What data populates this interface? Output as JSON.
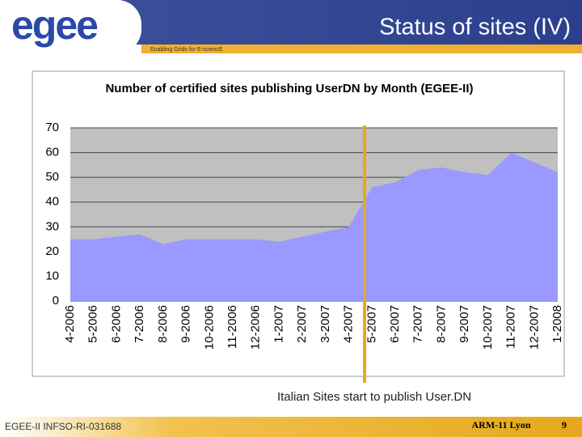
{
  "slide": {
    "logo": "egee",
    "title": "Status of sites (IV)",
    "tagline": "Enabling Grids for E-sciencE",
    "footer_left": "EGEE-II INFSO-RI-031688",
    "footer_center": "ARM-11 Lyon",
    "page_number": "9"
  },
  "chart_data": {
    "type": "area",
    "title": "Number of certified sites publishing UserDN by Month (EGEE-II)",
    "categories": [
      "4-2006",
      "5-2006",
      "6-2006",
      "7-2006",
      "8-2006",
      "9-2006",
      "10-2006",
      "11-2006",
      "12-2006",
      "1-2007",
      "2-2007",
      "3-2007",
      "4-2007",
      "5-2007",
      "6-2007",
      "7-2007",
      "8-2007",
      "9-2007",
      "10-2007",
      "11-2007",
      "12-2007",
      "1-2008"
    ],
    "values": [
      25,
      25,
      26,
      27,
      23,
      25,
      25,
      25,
      25,
      24,
      26,
      28,
      30,
      46,
      48,
      53,
      54,
      52,
      51,
      60,
      56,
      52
    ],
    "color": "#9999ff",
    "ylim": [
      0,
      70
    ],
    "yticks": [
      0,
      10,
      20,
      30,
      40,
      50,
      60,
      70
    ],
    "grid": true,
    "annotation": "Italian Sites start to publish User.DN"
  }
}
